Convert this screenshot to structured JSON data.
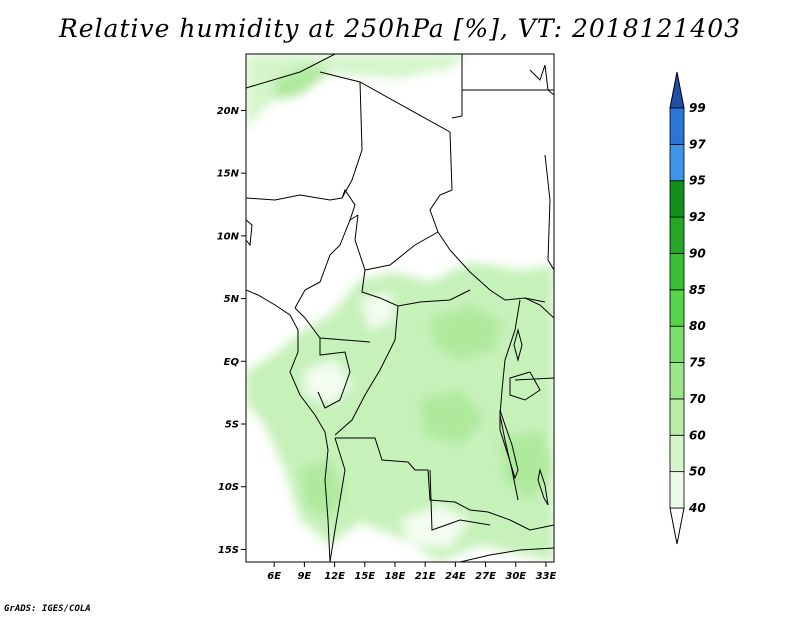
{
  "title": "Relative humidity at 250hPa [%], VT: 2018121403",
  "credit": "GrADS: IGES/COLA",
  "colors": {
    "lt40": "#ffffff",
    "40_50": "#ecfbe7",
    "50_60": "#d4f5ca",
    "60_70": "#b8eda7",
    "70_75": "#9ce589",
    "75_80": "#7ade6a",
    "80_85": "#55d44a",
    "85_90": "#3ac038",
    "90_92": "#24a725",
    "92_95": "#11901a",
    "95_97": "#3d95ea",
    "97_99": "#2a75d6",
    "gt99": "#1f4fa8",
    "border": "#000000"
  },
  "map": {
    "lon_ticks": [
      "6E",
      "9E",
      "12E",
      "15E",
      "18E",
      "21E",
      "24E",
      "27E",
      "30E",
      "33E"
    ],
    "lat_ticks": [
      "20N",
      "15N",
      "10N",
      "5N",
      "EQ",
      "5S",
      "10S",
      "15S"
    ],
    "lon_range": [
      3.2,
      33.8
    ],
    "lat_range": [
      -16.0,
      24.5
    ]
  },
  "legend": {
    "levels": [
      "40",
      "50",
      "60",
      "70",
      "75",
      "80",
      "85",
      "90",
      "92",
      "95",
      "97",
      "99"
    ]
  }
}
